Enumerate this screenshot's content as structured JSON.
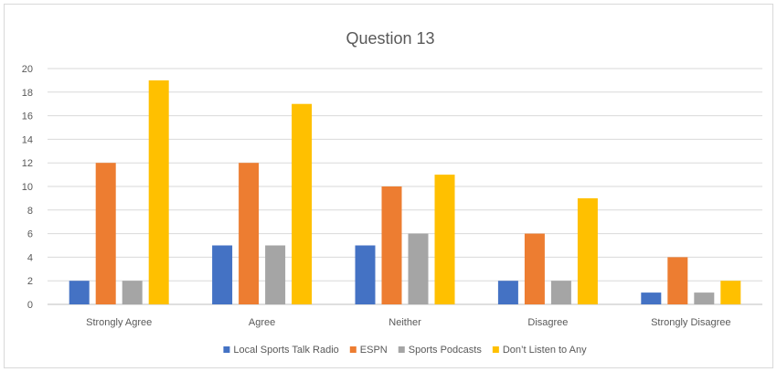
{
  "chart_data": {
    "type": "bar",
    "title": "Question 13",
    "categories": [
      "Strongly Agree",
      "Agree",
      "Neither",
      "Disagree",
      "Strongly Disagree"
    ],
    "series": [
      {
        "name": "Local Sports Talk Radio",
        "color": "#4472c4",
        "values": [
          2,
          5,
          5,
          2,
          1
        ]
      },
      {
        "name": "ESPN",
        "color": "#ed7d31",
        "values": [
          12,
          12,
          10,
          6,
          4
        ]
      },
      {
        "name": "Sports Podcasts",
        "color": "#a5a5a5",
        "values": [
          2,
          5,
          6,
          2,
          1
        ]
      },
      {
        "name": "Don’t Listen to Any",
        "color": "#ffc000",
        "values": [
          19,
          17,
          11,
          9,
          2
        ]
      }
    ],
    "ylim": [
      0,
      20
    ],
    "yticks": [
      "0",
      "2",
      "4",
      "6",
      "8",
      "10",
      "12",
      "14",
      "16",
      "18",
      "20"
    ],
    "grid": true,
    "legend_position": "bottom"
  }
}
